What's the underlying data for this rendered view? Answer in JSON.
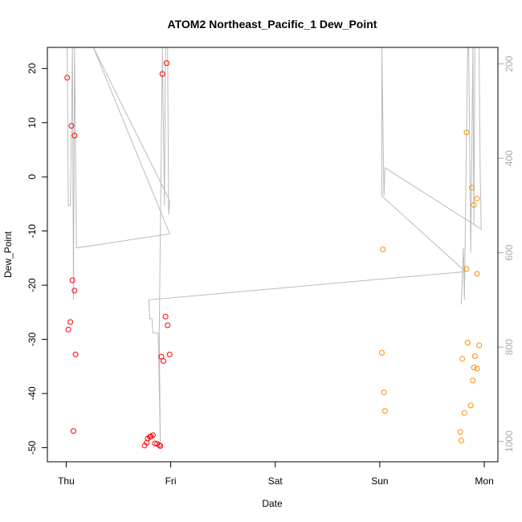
{
  "chart_data": {
    "type": "scatter",
    "title": "ATOM2 Northeast_Pacific_1 Dew_Point",
    "xlabel": "Date",
    "ylabel": "Dew_Point",
    "x_ticks": [
      "Thu",
      "Fri",
      "Sat",
      "Sun",
      "Mon"
    ],
    "x_tick_values": [
      0,
      1,
      2,
      3,
      4
    ],
    "xlim": [
      -0.18,
      4.13
    ],
    "ylim": [
      -52.6,
      23.9
    ],
    "y_ticks": [
      -50,
      -40,
      -30,
      -20,
      -10,
      0,
      10,
      20
    ],
    "y2_ticks": [
      200,
      400,
      600,
      800,
      1000
    ],
    "y2lim": [
      1043,
      165
    ],
    "y2_reversed": true,
    "grid": false,
    "colors": {
      "series_1": "#ff0000",
      "series_2": "#ff8c00",
      "line": "#bbbbbb",
      "frame": "#000000",
      "right_axis": "#aaaaaa"
    },
    "series": [
      {
        "color": "#ff0000",
        "points": [
          {
            "x": 0.01,
            "y": 18.3
          },
          {
            "x": 0.05,
            "y": 9.4
          },
          {
            "x": 0.08,
            "y": 7.6
          },
          {
            "x": 0.06,
            "y": -19.1
          },
          {
            "x": 0.08,
            "y": -21.0
          },
          {
            "x": 0.04,
            "y": -26.8
          },
          {
            "x": 0.02,
            "y": -28.2
          },
          {
            "x": 0.09,
            "y": -32.8
          },
          {
            "x": 0.07,
            "y": -46.9
          },
          {
            "x": 0.92,
            "y": 19.0
          },
          {
            "x": 0.96,
            "y": 21.0
          },
          {
            "x": 0.95,
            "y": -25.8
          },
          {
            "x": 0.97,
            "y": -27.4
          },
          {
            "x": 0.91,
            "y": -33.2
          },
          {
            "x": 0.99,
            "y": -32.8
          },
          {
            "x": 0.93,
            "y": -34.0
          },
          {
            "x": 0.75,
            "y": -49.6
          },
          {
            "x": 0.77,
            "y": -49.1
          },
          {
            "x": 0.78,
            "y": -48.3
          },
          {
            "x": 0.8,
            "y": -48.0
          },
          {
            "x": 0.81,
            "y": -47.9
          },
          {
            "x": 0.83,
            "y": -47.7
          },
          {
            "x": 0.85,
            "y": -49.2
          },
          {
            "x": 0.87,
            "y": -49.3
          },
          {
            "x": 0.89,
            "y": -49.5
          },
          {
            "x": 0.9,
            "y": -49.7
          }
        ]
      },
      {
        "color": "#ff8c00",
        "points": [
          {
            "x": 3.03,
            "y": -13.4
          },
          {
            "x": 3.02,
            "y": -32.5
          },
          {
            "x": 3.04,
            "y": -39.8
          },
          {
            "x": 3.05,
            "y": -43.2
          },
          {
            "x": 3.83,
            "y": 8.2
          },
          {
            "x": 3.88,
            "y": -2.0
          },
          {
            "x": 3.9,
            "y": -5.2
          },
          {
            "x": 3.93,
            "y": -4.0
          },
          {
            "x": 3.83,
            "y": -17.0
          },
          {
            "x": 3.93,
            "y": -17.9
          },
          {
            "x": 3.84,
            "y": -30.6
          },
          {
            "x": 3.95,
            "y": -31.1
          },
          {
            "x": 3.91,
            "y": -33.1
          },
          {
            "x": 3.79,
            "y": -33.6
          },
          {
            "x": 3.9,
            "y": -35.2
          },
          {
            "x": 3.93,
            "y": -35.4
          },
          {
            "x": 3.89,
            "y": -37.6
          },
          {
            "x": 3.87,
            "y": -42.2
          },
          {
            "x": 3.81,
            "y": -43.6
          },
          {
            "x": 3.77,
            "y": -47.1
          },
          {
            "x": 3.78,
            "y": -48.7
          }
        ]
      }
    ],
    "line_series": {
      "color": "#bbbbbb",
      "axis": "right",
      "points": [
        {
          "x": 0.01,
          "y": 165
        },
        {
          "x": 0.02,
          "y": 500
        },
        {
          "x": 0.04,
          "y": 500
        },
        {
          "x": 0.06,
          "y": 165
        },
        {
          "x": 0.07,
          "y": 700
        },
        {
          "x": 0.08,
          "y": 165
        },
        {
          "x": 0.1,
          "y": 590
        },
        {
          "x": 0.99,
          "y": 560
        },
        {
          "x": 0.26,
          "y": 165
        },
        {
          "x": 0.99,
          "y": 490
        },
        {
          "x": 0.98,
          "y": 520
        },
        {
          "x": 0.97,
          "y": 165
        },
        {
          "x": 0.95,
          "y": 165
        },
        {
          "x": 0.94,
          "y": 500
        },
        {
          "x": 0.92,
          "y": 165
        },
        {
          "x": 0.89,
          "y": 770
        },
        {
          "x": 0.9,
          "y": 1000
        },
        {
          "x": 0.88,
          "y": 770
        },
        {
          "x": 0.83,
          "y": 770
        },
        {
          "x": 0.82,
          "y": 740
        },
        {
          "x": 0.81,
          "y": 740
        },
        {
          "x": 0.8,
          "y": 740
        },
        {
          "x": 0.79,
          "y": 700
        },
        {
          "x": 3.82,
          "y": 640
        },
        {
          "x": 3.02,
          "y": 480
        },
        {
          "x": 3.02,
          "y": 165
        },
        {
          "x": 3.04,
          "y": 480
        },
        {
          "x": 3.05,
          "y": 420
        },
        {
          "x": 3.97,
          "y": 550
        },
        {
          "x": 3.96,
          "y": 420
        },
        {
          "x": 3.95,
          "y": 165
        },
        {
          "x": 3.93,
          "y": 165
        },
        {
          "x": 3.91,
          "y": 165
        },
        {
          "x": 3.9,
          "y": 540
        },
        {
          "x": 3.89,
          "y": 165
        },
        {
          "x": 3.87,
          "y": 600
        },
        {
          "x": 3.85,
          "y": 165
        },
        {
          "x": 3.84,
          "y": 165
        },
        {
          "x": 3.81,
          "y": 700
        },
        {
          "x": 3.8,
          "y": 590
        },
        {
          "x": 3.78,
          "y": 710
        }
      ]
    }
  }
}
